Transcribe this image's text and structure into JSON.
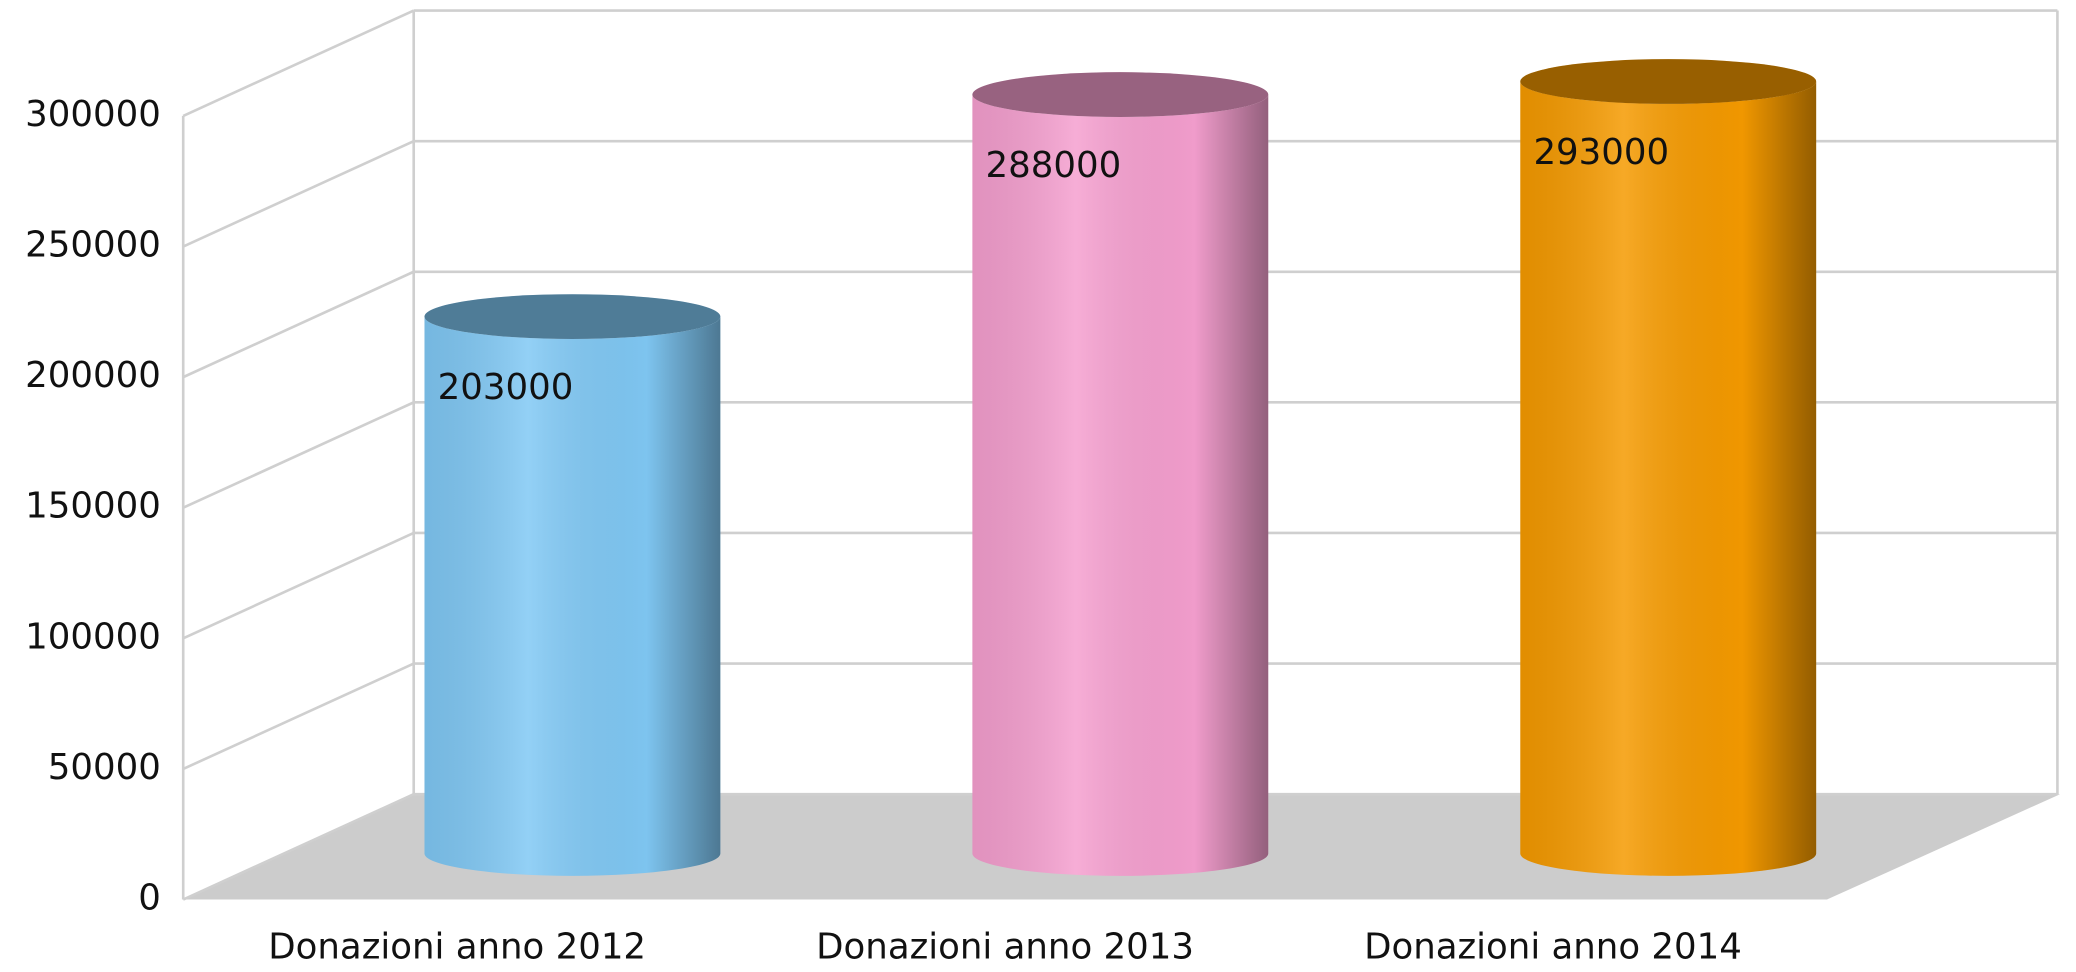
{
  "chart_data": {
    "type": "bar3d",
    "categories": [
      "Donazioni anno 2012",
      "Donazioni anno 2013",
      "Donazioni anno 2014"
    ],
    "values": [
      203000,
      288000,
      293000
    ],
    "colors": [
      "#80c8f4",
      "#f59fcf",
      "#f59a00"
    ],
    "ylim": [
      0,
      300000
    ],
    "yticks": [
      0,
      50000,
      100000,
      150000,
      200000,
      250000,
      300000
    ],
    "grid": true
  }
}
